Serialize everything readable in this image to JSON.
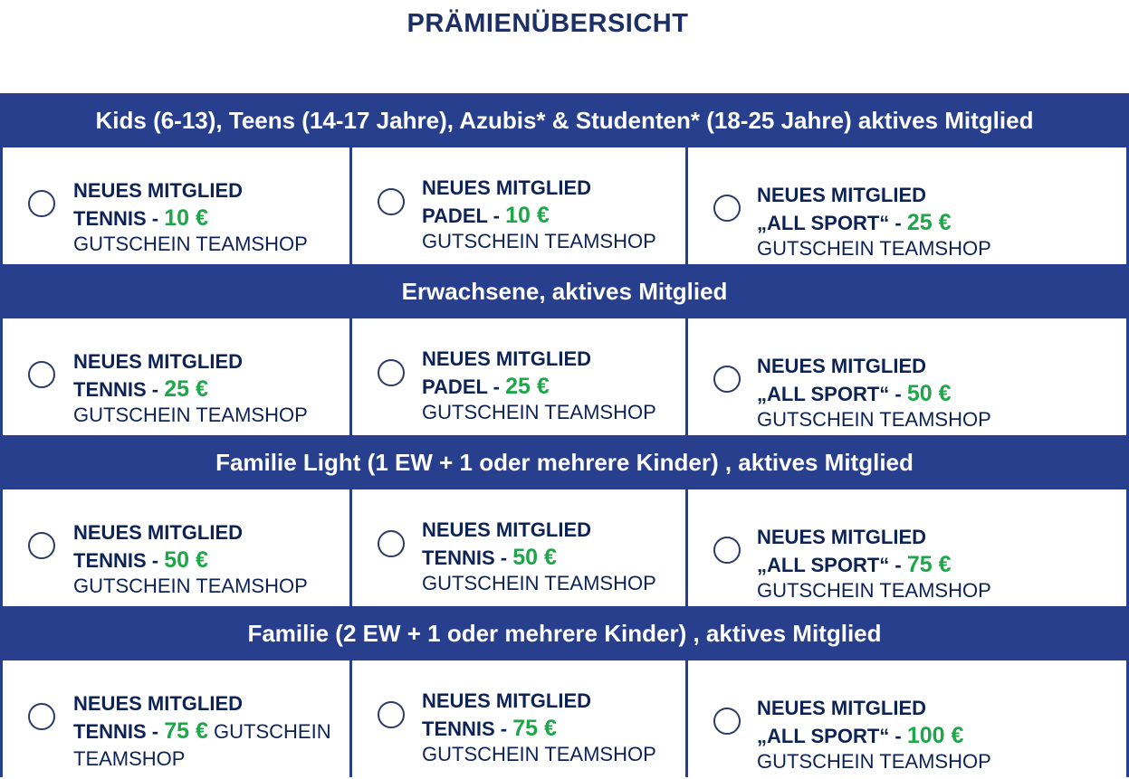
{
  "title": "PRÄMIENÜBERSICHT",
  "colors": {
    "band": "#273f8d",
    "text": "#0e2355",
    "price": "#1ea64a"
  },
  "sections": [
    {
      "header": "Kids (6-13), Teens (14-17 Jahre), Azubis* & Studenten* (18-25 Jahre) aktives Mitglied",
      "options": [
        {
          "line1": "NEUES MITGLIED",
          "sport": "TENNIS",
          "dash": " - ",
          "price": "10 €",
          "voucher": "GUTSCHEIN TEAMSHOP"
        },
        {
          "line1": "NEUES MITGLIED",
          "sport": "PADEL",
          "dash": " - ",
          "price": "10 €",
          "voucher": "GUTSCHEIN TEAMSHOP"
        },
        {
          "line1": "NEUES MITGLIED",
          "sport": "„ALL SPORT“",
          "dash": " - ",
          "price": "25 €",
          "voucher": "GUTSCHEIN TEAMSHOP"
        }
      ]
    },
    {
      "header": "Erwachsene, aktives Mitglied",
      "options": [
        {
          "line1": "NEUES MITGLIED",
          "sport": "TENNIS",
          "dash": " - ",
          "price": "25 €",
          "voucher": "GUTSCHEIN TEAMSHOP"
        },
        {
          "line1": "NEUES MITGLIED",
          "sport": "PADEL",
          "dash": " - ",
          "price": "25 €",
          "voucher": "GUTSCHEIN TEAMSHOP"
        },
        {
          "line1": "NEUES MITGLIED",
          "sport": "„ALL SPORT“",
          "dash": " - ",
          "price": "50 €",
          "voucher": "GUTSCHEIN TEAMSHOP"
        }
      ]
    },
    {
      "header": "Familie Light (1 EW + 1 oder mehrere Kinder) , aktives Mitglied",
      "options": [
        {
          "line1": "NEUES MITGLIED",
          "sport": "TENNIS",
          "dash": " - ",
          "price": "50 €",
          "voucher": "GUTSCHEIN TEAMSHOP"
        },
        {
          "line1": "NEUES MITGLIED",
          "sport": "TENNIS",
          "dash": " - ",
          "price": "50 €",
          "voucher": "GUTSCHEIN TEAMSHOP"
        },
        {
          "line1": "NEUES MITGLIED",
          "sport": "„ALL SPORT“",
          "dash": " - ",
          "price": "75 €",
          "voucher": "GUTSCHEIN TEAMSHOP"
        }
      ]
    },
    {
      "header": "Familie (2 EW + 1 oder mehrere Kinder) , aktives Mitglied",
      "options": [
        {
          "line1": "NEUES MITGLIED",
          "sport": "TENNIS",
          "dash": " - ",
          "price": "75 €",
          "voucher": "GUTSCHEIN TEAMSHOP",
          "inline": true
        },
        {
          "line1": "NEUES MITGLIED",
          "sport": "TENNIS",
          "dash": " - ",
          "price": "75 €",
          "voucher": "GUTSCHEIN TEAMSHOP"
        },
        {
          "line1": "NEUES MITGLIED",
          "sport": "„ALL SPORT“",
          "dash": " - ",
          "price": "100 €",
          "voucher": "GUTSCHEIN TEAMSHOP"
        }
      ]
    }
  ]
}
